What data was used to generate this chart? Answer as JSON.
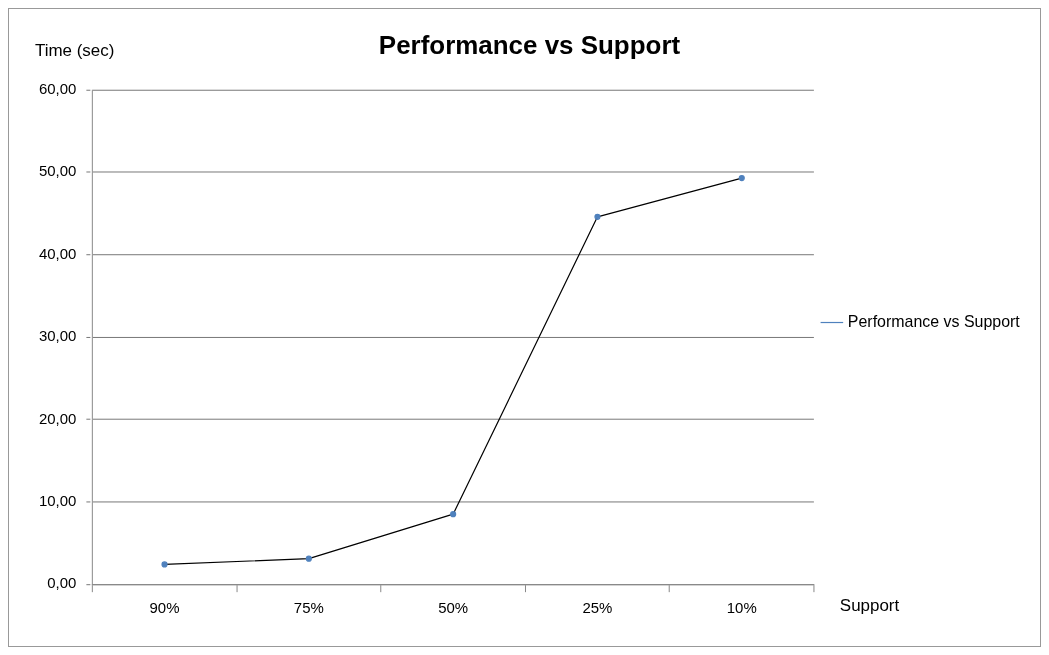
{
  "chart_data": {
    "type": "line",
    "title": "Performance vs Support",
    "xlabel": "Support",
    "ylabel": "Time (sec)",
    "categories": [
      "90%",
      "75%",
      "50%",
      "25%",
      "10%"
    ],
    "series": [
      {
        "name": "Performance vs Support",
        "color": "#000000",
        "values": [
          2.4,
          3.1,
          8.5,
          44.6,
          49.3
        ]
      }
    ],
    "ylim": [
      0,
      60
    ],
    "yticks": [
      {
        "value": 0,
        "label": "0,00"
      },
      {
        "value": 10,
        "label": "10,00"
      },
      {
        "value": 20,
        "label": "20,00"
      },
      {
        "value": 30,
        "label": "30,00"
      },
      {
        "value": 40,
        "label": "40,00"
      },
      {
        "value": 50,
        "label": "50,00"
      },
      {
        "value": 60,
        "label": "60,00"
      }
    ],
    "grid": "y",
    "legend": "right",
    "marker": "circle",
    "line_style": "solid"
  }
}
